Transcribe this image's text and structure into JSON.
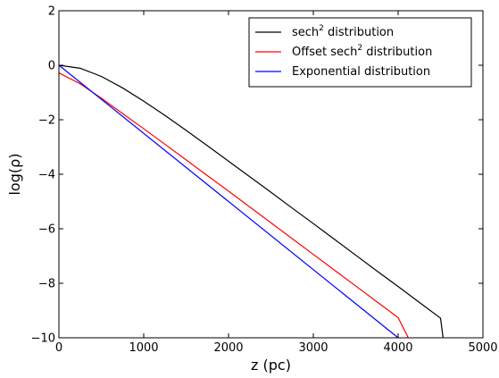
{
  "chart_data": {
    "type": "line",
    "xlabel": "z (pc)",
    "ylabel": "log(ρ)",
    "xlim": [
      0,
      5000
    ],
    "ylim": [
      -10,
      2
    ],
    "xticks": [
      "0",
      "1000",
      "2000",
      "3000",
      "4000",
      "5000"
    ],
    "yticks": [
      "−10",
      "−8",
      "−6",
      "−4",
      "−2",
      "0",
      "2"
    ],
    "grid": false,
    "legend_position": "top-right",
    "series": [
      {
        "name_parts": [
          "sech",
          "2",
          " distribution"
        ],
        "color": "#000000",
        "x": [
          0,
          250,
          500,
          750,
          1000,
          1250,
          1500,
          1750,
          2000,
          2250,
          2500,
          2750,
          3000,
          3250,
          3500,
          3750,
          4000,
          4250,
          4500,
          4530
        ],
        "y": [
          0,
          -0.11,
          -0.41,
          -0.83,
          -1.32,
          -1.84,
          -2.39,
          -2.95,
          -3.52,
          -4.09,
          -4.66,
          -5.24,
          -5.81,
          -6.39,
          -6.97,
          -7.55,
          -8.12,
          -8.7,
          -9.28,
          -10.0
        ]
      },
      {
        "name_parts": [
          "Offset sech",
          "2",
          " distribution"
        ],
        "color": "#ff0000",
        "x": [
          0,
          250,
          500,
          750,
          1000,
          1250,
          1500,
          1750,
          2000,
          2250,
          2500,
          2750,
          3000,
          3250,
          3500,
          3750,
          4000,
          4120
        ],
        "y": [
          -0.28,
          -0.68,
          -1.21,
          -1.77,
          -2.33,
          -2.9,
          -3.47,
          -4.05,
          -4.62,
          -5.2,
          -5.78,
          -6.36,
          -6.94,
          -7.52,
          -8.1,
          -8.68,
          -9.26,
          -10.0
        ]
      },
      {
        "name_parts": [
          "Exponential distribution",
          "",
          ""
        ],
        "color": "#0000ff",
        "x": [
          0,
          4000
        ],
        "y": [
          0,
          -10.0
        ]
      }
    ]
  }
}
